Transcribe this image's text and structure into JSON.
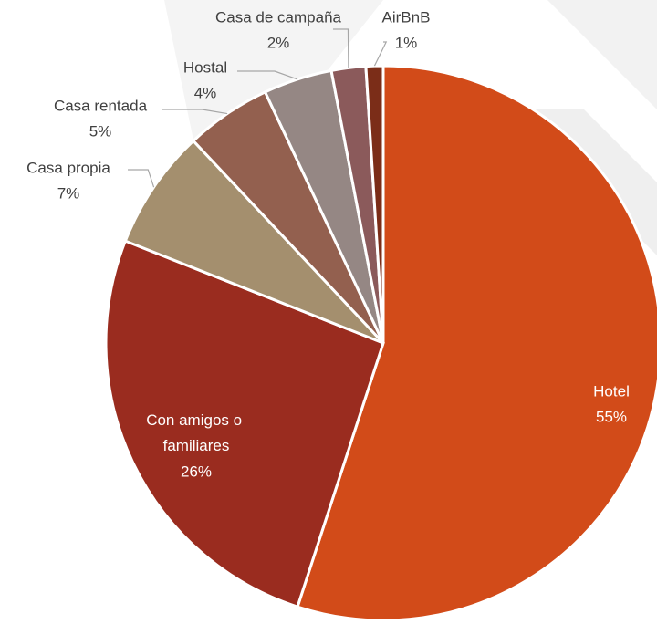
{
  "chart_data": {
    "type": "pie",
    "categories": [
      "Hotel",
      "Con amigos o familiares",
      "Casa propia",
      "Casa rentada",
      "Hostal",
      "Casa de campaña",
      "AirBnB"
    ],
    "values": [
      55,
      26,
      7,
      5,
      4,
      2,
      1
    ],
    "value_labels": [
      "55%",
      "26%",
      "7%",
      "5%",
      "4%",
      "2%",
      "1%"
    ],
    "colors": [
      "#d24b19",
      "#9a2c1f",
      "#a48f6e",
      "#93604f",
      "#958784",
      "#8b5a5b",
      "#7b2d18"
    ]
  }
}
